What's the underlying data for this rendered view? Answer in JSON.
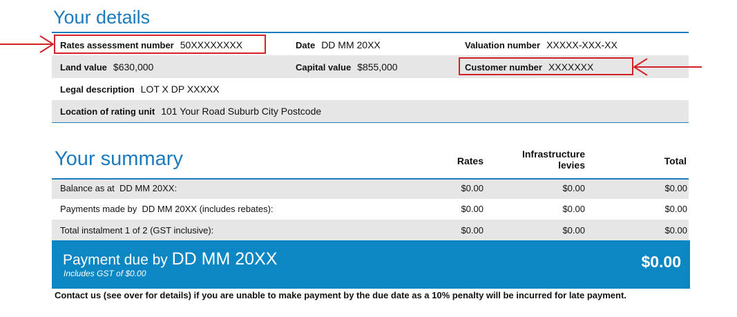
{
  "details": {
    "title": "Your details",
    "rows": [
      [
        {
          "label": "Rates assessment number",
          "value": "50XXXXXXXX"
        },
        {
          "label": "Date",
          "value": "DD MM 20XX"
        },
        {
          "label": "Valuation number",
          "value": "XXXXX-XXX-XX"
        }
      ],
      [
        {
          "label": "Land value",
          "value": "$630,000"
        },
        {
          "label": "Capital value",
          "value": "$855,000"
        },
        {
          "label": "Customer number",
          "value": "XXXXXXX"
        }
      ],
      [
        {
          "label": "Legal description",
          "value": "LOT X DP XXXXX"
        }
      ],
      [
        {
          "label": "Location of rating unit",
          "value": "101 Your Road Suburb City Postcode"
        }
      ]
    ]
  },
  "summary": {
    "title": "Your summary",
    "columns": [
      "Rates",
      "Infrastructure levies",
      "Total"
    ],
    "rows": [
      {
        "label": "Balance as at  DD MM 20XX:",
        "values": [
          "$0.00",
          "$0.00",
          "$0.00"
        ]
      },
      {
        "label": "Payments made by  DD MM 20XX (includes rebates):",
        "values": [
          "$0.00",
          "$0.00",
          "$0.00"
        ]
      },
      {
        "label": "Total instalment 1 of 2 (GST inclusive):",
        "values": [
          "$0.00",
          "$0.00",
          "$0.00"
        ]
      }
    ]
  },
  "payment": {
    "label": "Payment due by",
    "date": "DD MM 20XX",
    "note": "Includes GST of $0.00",
    "amount": "$0.00"
  },
  "footer": "Contact us (see over for details) if you are unable to make payment by the due date as a 10% penalty will be incurred for late payment."
}
